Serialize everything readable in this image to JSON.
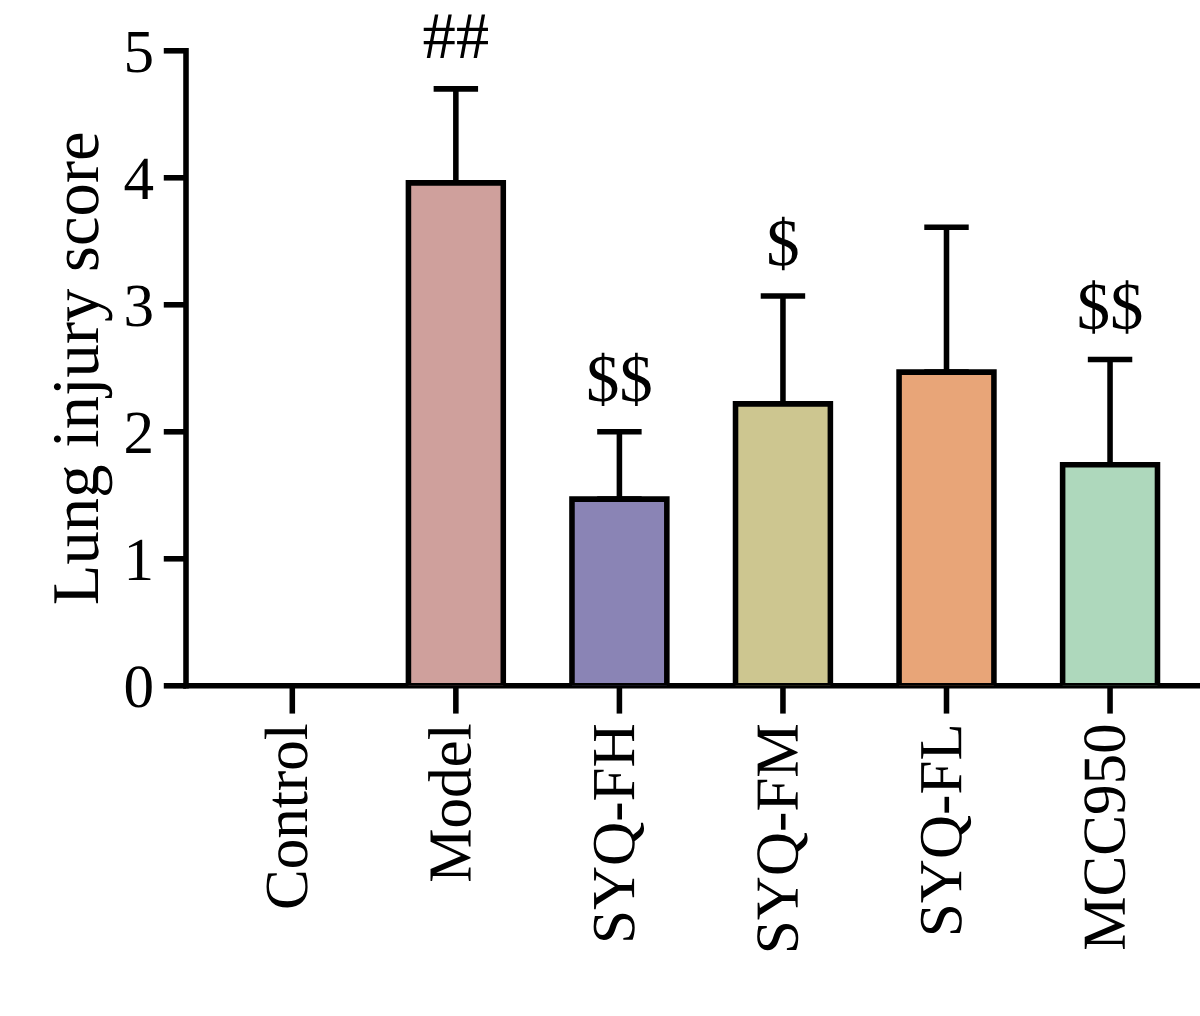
{
  "chart_data": {
    "type": "bar",
    "ylabel": "Lung injury score",
    "categories": [
      "Control",
      "Model",
      "SYQ-FH",
      "SYQ-FM",
      "SYQ-FL",
      "MCC950"
    ],
    "values": [
      0,
      3.96,
      1.47,
      2.22,
      2.47,
      1.74
    ],
    "colors": [
      null,
      "#cfa09c",
      "#8a84b5",
      "#cdc690",
      "#e8a578",
      "#aed8bc"
    ],
    "errors": [
      null,
      [
        3.96,
        4.7
      ],
      [
        1.47,
        2.0
      ],
      [
        2.22,
        3.07
      ],
      [
        2.47,
        3.61
      ],
      [
        1.74,
        2.57
      ]
    ],
    "ylim": [
      0,
      5
    ],
    "yticks": [
      0,
      1,
      2,
      3,
      4,
      5
    ],
    "grid": false,
    "annotations": [
      {
        "text": "##",
        "x": "Model",
        "y": 4.7
      },
      {
        "text": "$$",
        "x": "SYQ-FH",
        "y": 2.0
      },
      {
        "text": "$",
        "x": "SYQ-FM",
        "y": 3.07
      },
      {
        "text": "$$",
        "x": "MCC950",
        "y": 2.57
      }
    ]
  }
}
